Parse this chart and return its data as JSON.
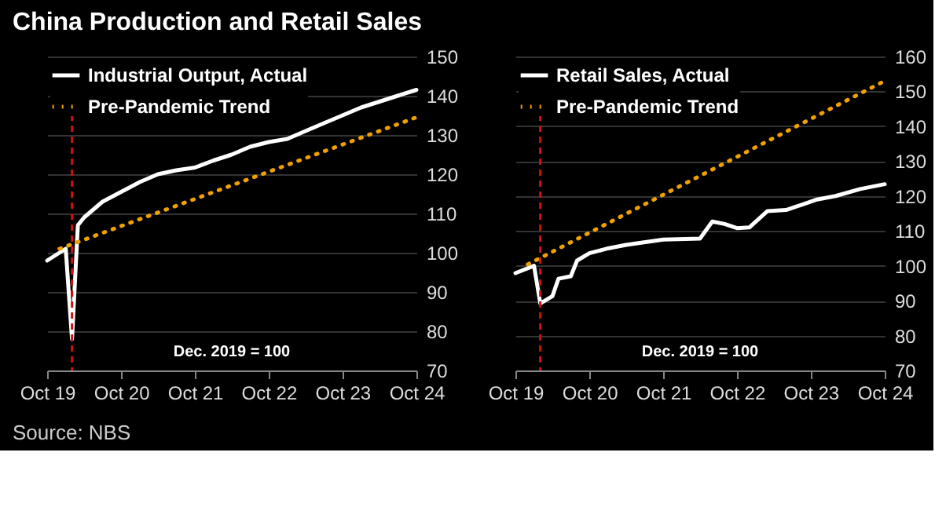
{
  "chart_data": [
    {
      "type": "line",
      "title": "China Production and Retail Sales",
      "annotations": [
        "Dec. 2019 = 100",
        "Source: NBS"
      ],
      "xlim": [
        "2019-10",
        "2024-10"
      ],
      "xticks": [
        {
          "value": "2019-10",
          "label": "Oct 19"
        },
        {
          "value": "2020-10",
          "label": "Oct 20"
        },
        {
          "value": "2021-10",
          "label": "Oct 21"
        },
        {
          "value": "2022-10",
          "label": "Oct 22"
        },
        {
          "value": "2023-10",
          "label": "Oct 23"
        },
        {
          "value": "2024-10",
          "label": "Oct 24"
        }
      ],
      "ylim": [
        70,
        150
      ],
      "yticks": [
        70,
        80,
        90,
        100,
        110,
        120,
        130,
        140,
        150
      ],
      "grid": "y",
      "legend": "top left",
      "ref_lines": [
        {
          "axis": "x",
          "value": "2020-02",
          "color": "#cc1111",
          "line_style": "dashed"
        }
      ],
      "series": [
        {
          "name": "Industrial Output, Actual",
          "color": "#ffffff",
          "line_style": "solid",
          "x": [
            "2019-10",
            "2019-12",
            "2020-01",
            "2020-02",
            "2020-03",
            "2020-04",
            "2020-07",
            "2020-10",
            "2021-01",
            "2021-04",
            "2021-07",
            "2021-10",
            "2022-01",
            "2022-04",
            "2022-07",
            "2022-10",
            "2023-01",
            "2023-04",
            "2023-07",
            "2023-10",
            "2024-01",
            "2024-04",
            "2024-07",
            "2024-10"
          ],
          "values": [
            98,
            100,
            101,
            78,
            107,
            109,
            113,
            115.5,
            118,
            120,
            121,
            121.7,
            123.5,
            125,
            127,
            128.2,
            129,
            131,
            133,
            135,
            137,
            138.5,
            140,
            141.5
          ]
        },
        {
          "name": "Pre-Pandemic Trend",
          "color": "#f0a000",
          "line_style": "dotted",
          "x": [
            "2019-12",
            "2024-10"
          ],
          "values": [
            101,
            134.5
          ]
        }
      ]
    },
    {
      "type": "line",
      "annotations": [
        "Dec. 2019 = 100"
      ],
      "xlim": [
        "2019-10",
        "2024-10"
      ],
      "xticks": [
        {
          "value": "2019-10",
          "label": "Oct 19"
        },
        {
          "value": "2020-10",
          "label": "Oct 20"
        },
        {
          "value": "2021-10",
          "label": "Oct 21"
        },
        {
          "value": "2022-10",
          "label": "Oct 22"
        },
        {
          "value": "2023-10",
          "label": "Oct 23"
        },
        {
          "value": "2024-10",
          "label": "Oct 24"
        }
      ],
      "ylim": [
        70,
        160
      ],
      "yticks": [
        70,
        80,
        90,
        100,
        110,
        120,
        130,
        140,
        150,
        160
      ],
      "grid": "y",
      "legend": "top left",
      "ref_lines": [
        {
          "axis": "x",
          "value": "2020-02",
          "color": "#cc1111",
          "line_style": "dashed"
        }
      ],
      "series": [
        {
          "name": "Retail Sales, Actual",
          "color": "#ffffff",
          "line_style": "solid",
          "x": [
            "2019-10",
            "2020-01",
            "2020-02",
            "2020-04",
            "2020-05",
            "2020-07",
            "2020-08",
            "2020-10",
            "2021-01",
            "2021-04",
            "2021-10",
            "2022-04",
            "2022-06",
            "2022-08",
            "2022-10",
            "2022-12",
            "2023-03",
            "2023-06",
            "2023-09",
            "2023-11",
            "2024-02",
            "2024-06",
            "2024-10"
          ],
          "values": [
            97.9,
            100,
            89.2,
            91.3,
            96.3,
            97,
            101.5,
            103.6,
            105,
            106,
            107.5,
            107.8,
            112.7,
            112,
            110.8,
            111,
            115.7,
            116,
            117.8,
            119,
            120,
            122,
            123.4
          ]
        },
        {
          "name": "Pre-Pandemic Trend",
          "color": "#f0a000",
          "line_style": "dotted",
          "x": [
            "2019-12",
            "2024-10"
          ],
          "values": [
            100.4,
            153
          ]
        }
      ]
    }
  ]
}
